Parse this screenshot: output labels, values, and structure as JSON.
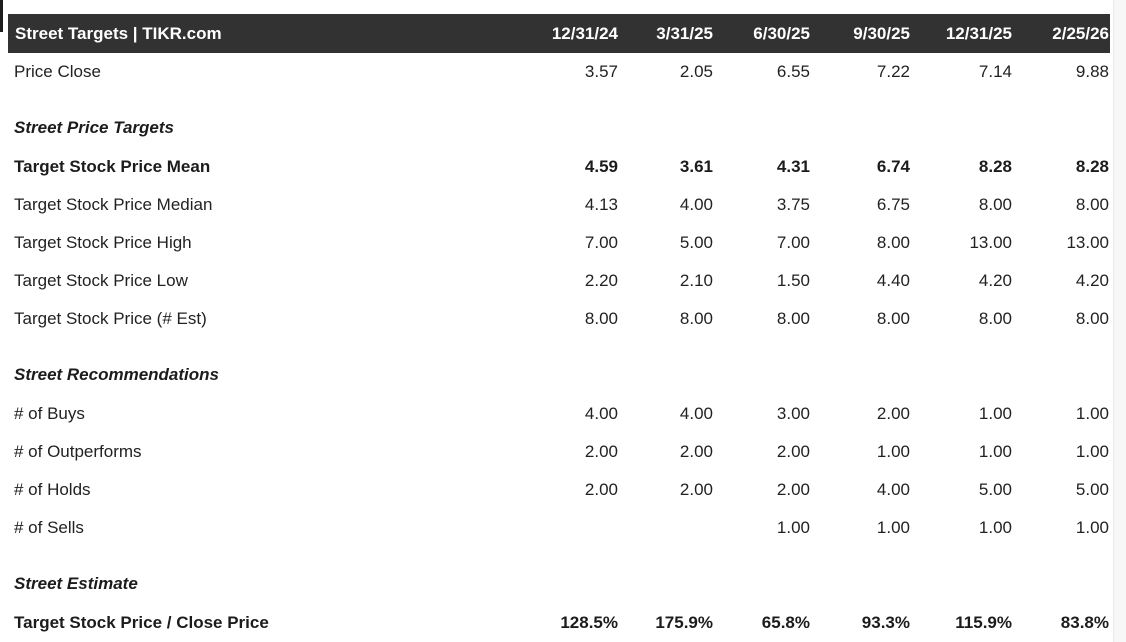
{
  "header": {
    "title": "Street Targets | TIKR.com",
    "columns": [
      "12/31/24",
      "3/31/25",
      "6/30/25",
      "9/30/25",
      "12/31/25",
      "2/25/26"
    ]
  },
  "rows": [
    {
      "type": "data",
      "label": "Price Close",
      "bold": false,
      "values": [
        "3.57",
        "2.05",
        "6.55",
        "7.22",
        "7.14",
        "9.88"
      ]
    },
    {
      "type": "section",
      "label": "Street Price Targets"
    },
    {
      "type": "data",
      "label": "Target Stock Price Mean",
      "bold": true,
      "values": [
        "4.59",
        "3.61",
        "4.31",
        "6.74",
        "8.28",
        "8.28"
      ]
    },
    {
      "type": "data",
      "label": "Target Stock Price Median",
      "bold": false,
      "values": [
        "4.13",
        "4.00",
        "3.75",
        "6.75",
        "8.00",
        "8.00"
      ]
    },
    {
      "type": "data",
      "label": "Target Stock Price High",
      "bold": false,
      "values": [
        "7.00",
        "5.00",
        "7.00",
        "8.00",
        "13.00",
        "13.00"
      ]
    },
    {
      "type": "data",
      "label": "Target Stock Price Low",
      "bold": false,
      "values": [
        "2.20",
        "2.10",
        "1.50",
        "4.40",
        "4.20",
        "4.20"
      ]
    },
    {
      "type": "data",
      "label": "Target Stock Price (# Est)",
      "bold": false,
      "values": [
        "8.00",
        "8.00",
        "8.00",
        "8.00",
        "8.00",
        "8.00"
      ]
    },
    {
      "type": "section",
      "label": "Street Recommendations"
    },
    {
      "type": "data",
      "label": "# of Buys",
      "bold": false,
      "values": [
        "4.00",
        "4.00",
        "3.00",
        "2.00",
        "1.00",
        "1.00"
      ]
    },
    {
      "type": "data",
      "label": "# of Outperforms",
      "bold": false,
      "values": [
        "2.00",
        "2.00",
        "2.00",
        "1.00",
        "1.00",
        "1.00"
      ]
    },
    {
      "type": "data",
      "label": "# of Holds",
      "bold": false,
      "values": [
        "2.00",
        "2.00",
        "2.00",
        "4.00",
        "5.00",
        "5.00"
      ]
    },
    {
      "type": "data",
      "label": "# of Sells",
      "bold": false,
      "values": [
        "",
        "",
        "1.00",
        "1.00",
        "1.00",
        "1.00"
      ]
    },
    {
      "type": "section",
      "label": "Street Estimate"
    },
    {
      "type": "data",
      "label": "Target Stock Price / Close Price",
      "bold": true,
      "values": [
        "128.5%",
        "175.9%",
        "65.8%",
        "93.3%",
        "115.9%",
        "83.8%"
      ]
    }
  ],
  "colors": {
    "header_bg": "#323232",
    "header_text": "#ffffff",
    "body_text": "#222222",
    "side_panel_bg": "#f7f7f8",
    "side_panel_border": "#ebebeb"
  }
}
